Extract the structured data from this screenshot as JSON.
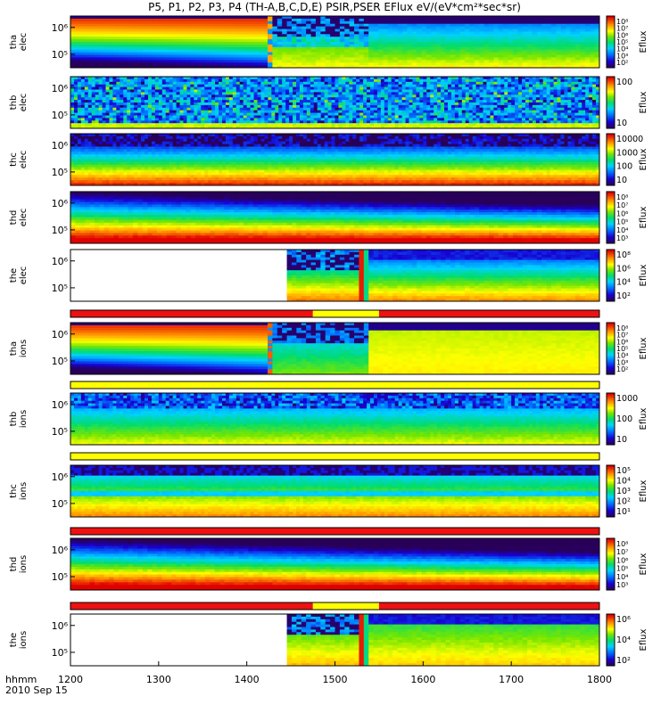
{
  "title": "P5, P1, P2, P3, P4 (TH-A,B,C,D,E) PSIR,PSER EFlux eV/(eV*cm²*sec*sr)",
  "time_axis": {
    "labels": [
      "1200",
      "1300",
      "1400",
      "1500",
      "1600",
      "1700",
      "1800"
    ],
    "left_label": "hhmm",
    "date_label": "2010 Sep 15"
  },
  "colorbar_label": "Eflux",
  "colors": {
    "frame": "#000000",
    "mode_bar_red": "#ee1111",
    "mode_bar_yellow": "#ffff00",
    "empty_fill": "#ffffff"
  },
  "chart_data": {
    "type": "heatmap",
    "x_unit": "hhmm",
    "x_range": [
      "1200",
      "1800"
    ],
    "panels": [
      {
        "probe": "tha",
        "species": "elec",
        "y_ticks": [
          "10⁶",
          "10⁵"
        ],
        "cbar_ticks": [
          "10⁸",
          "10⁷",
          "10⁶",
          "10⁵",
          "10⁴",
          "10³",
          "10²"
        ],
        "pattern": "tha_e"
      },
      {
        "probe": "thb",
        "species": "elec",
        "y_ticks": [
          "10⁶",
          "10⁵"
        ],
        "cbar_ticks": [
          "100",
          "10"
        ],
        "pattern": "thb_e"
      },
      {
        "probe": "thc",
        "species": "elec",
        "y_ticks": [
          "10⁶",
          "10⁵"
        ],
        "cbar_ticks": [
          "10000",
          "1000",
          "100",
          "10"
        ],
        "pattern": "thc_e"
      },
      {
        "probe": "thd",
        "species": "elec",
        "y_ticks": [
          "10⁶",
          "10⁵"
        ],
        "cbar_ticks": [
          "10⁸",
          "10⁷",
          "10⁶",
          "10⁵",
          "10⁴",
          "10³"
        ],
        "pattern": "thd_e"
      },
      {
        "probe": "the",
        "species": "elec",
        "y_ticks": [
          "10⁶",
          "10⁵"
        ],
        "cbar_ticks": [
          "10⁸",
          "10⁶",
          "10⁴",
          "10²"
        ],
        "pattern": "the_e"
      },
      {
        "probe": "tha",
        "species": "ions",
        "y_ticks": [
          "10⁶",
          "10⁵"
        ],
        "cbar_ticks": [
          "10⁸",
          "10⁷",
          "10⁶",
          "10⁵",
          "10⁴",
          "10³",
          "10²"
        ],
        "pattern": "tha_i"
      },
      {
        "probe": "thb",
        "species": "ions",
        "y_ticks": [
          "10⁶",
          "10⁵"
        ],
        "cbar_ticks": [
          "1000",
          "100",
          "10"
        ],
        "pattern": "thb_i"
      },
      {
        "probe": "thc",
        "species": "ions",
        "y_ticks": [
          "10⁶",
          "10⁵"
        ],
        "cbar_ticks": [
          "10⁵",
          "10⁴",
          "10³",
          "10²",
          "10¹"
        ],
        "pattern": "thc_i"
      },
      {
        "probe": "thd",
        "species": "ions",
        "y_ticks": [
          "10⁶",
          "10⁵"
        ],
        "cbar_ticks": [
          "10⁸",
          "10⁷",
          "10⁶",
          "10⁵",
          "10⁴",
          "10³"
        ],
        "pattern": "thd_i"
      },
      {
        "probe": "the",
        "species": "ions",
        "y_ticks": [
          "10⁶",
          "10⁵"
        ],
        "cbar_ticks": [
          "10⁶",
          "10⁴",
          "10²"
        ],
        "pattern": "the_i"
      }
    ],
    "mode_bars": [
      {
        "after_panel": 4,
        "segments": [
          {
            "from": "1200",
            "to": "1445",
            "color": "red"
          },
          {
            "from": "1445",
            "to": "1530",
            "color": "yellow"
          },
          {
            "from": "1530",
            "to": "1800",
            "color": "red"
          }
        ]
      },
      {
        "after_panel": 5,
        "segments": [
          {
            "from": "1200",
            "to": "1800",
            "color": "yellow"
          }
        ]
      },
      {
        "after_panel": 6,
        "segments": [
          {
            "from": "1200",
            "to": "1800",
            "color": "yellow"
          }
        ]
      },
      {
        "after_panel": 7,
        "segments": [
          {
            "from": "1200",
            "to": "1800",
            "color": "red"
          }
        ]
      },
      {
        "after_panel": 8,
        "segments": [
          {
            "from": "1200",
            "to": "1445",
            "color": "red"
          },
          {
            "from": "1445",
            "to": "1530",
            "color": "yellow"
          },
          {
            "from": "1530",
            "to": "1800",
            "color": "red"
          }
        ]
      }
    ]
  }
}
